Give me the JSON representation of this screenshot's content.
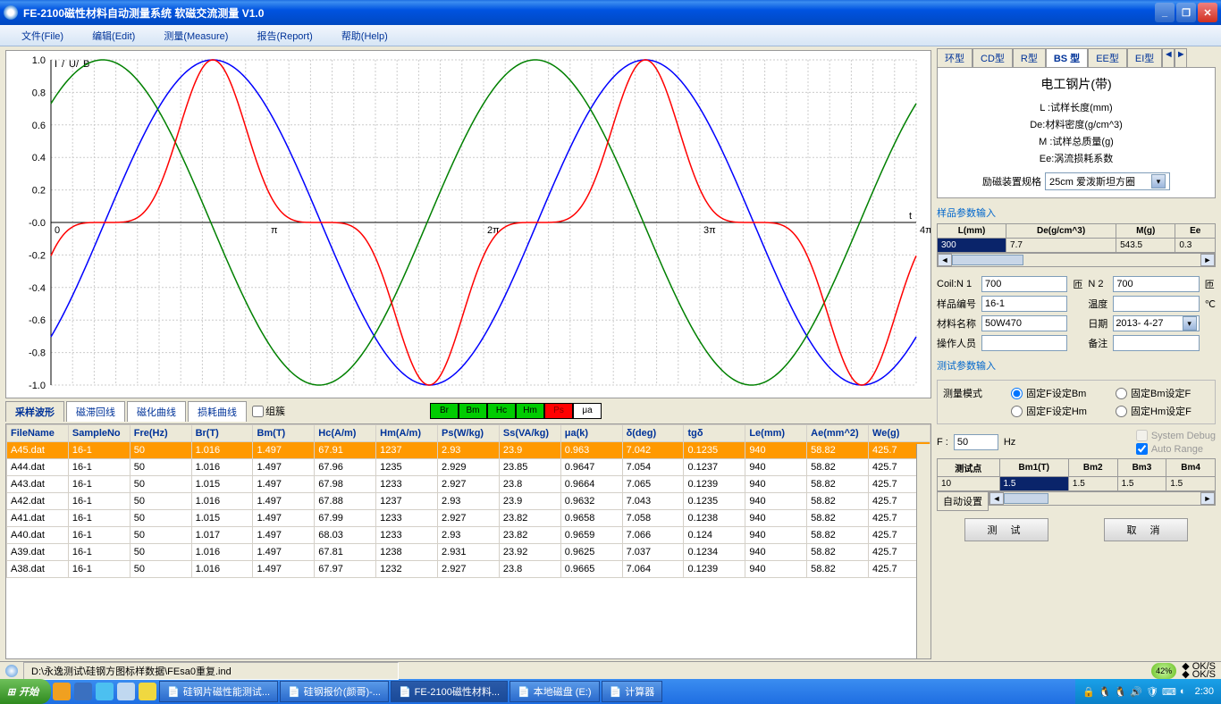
{
  "window": {
    "title": "FE-2100磁性材料自动测量系统  软磁交流测量  V1.0"
  },
  "menu": {
    "file": "文件(File)",
    "edit": "编辑(Edit)",
    "measure": "测量(Measure)",
    "report": "报告(Report)",
    "help": "帮助(Help)"
  },
  "chart": {
    "legend_label": "I/U/B",
    "time_axis_label": "t",
    "xticks": [
      "0",
      "π",
      "2π",
      "3π",
      "4π"
    ],
    "ylim": [
      -1.0,
      1.0
    ],
    "ytick_step": 0.2,
    "grid_color": "#cccccc",
    "background": "#ffffff",
    "series": {
      "i": {
        "color": "#ff0000"
      },
      "u": {
        "color": "#008000"
      },
      "b": {
        "color": "#0000ff"
      }
    }
  },
  "lower_tabs": {
    "t1": "采样波形",
    "t2": "磁滞回线",
    "t3": "磁化曲线",
    "t4": "损耗曲线",
    "group_cb": "组簇"
  },
  "legend_buttons": [
    {
      "label": "Br",
      "bg": "#00cc00"
    },
    {
      "label": "Bm",
      "bg": "#00cc00"
    },
    {
      "label": "Hc",
      "bg": "#00cc00"
    },
    {
      "label": "Hm",
      "bg": "#00cc00"
    },
    {
      "label": "Ps",
      "bg": "#ff0000"
    },
    {
      "label": "μa",
      "bg": "#ffffff"
    }
  ],
  "table": {
    "columns": [
      "FileName",
      "SampleNo",
      "Fre(Hz)",
      "Br(T)",
      "Bm(T)",
      "Hc(A/m)",
      "Hm(A/m)",
      "Ps(W/kg)",
      "Ss(VA/kg)",
      "μa(k)",
      "δ(deg)",
      "tgδ",
      "Le(mm)",
      "Ae(mm^2)",
      "We(g)"
    ],
    "rows": [
      [
        "A45.dat",
        "16-1",
        "50",
        "1.016",
        "1.497",
        "67.91",
        "1237",
        "2.93",
        "23.9",
        "0.963",
        "7.042",
        "0.1235",
        "940",
        "58.82",
        "425.7"
      ],
      [
        "A44.dat",
        "16-1",
        "50",
        "1.016",
        "1.497",
        "67.96",
        "1235",
        "2.929",
        "23.85",
        "0.9647",
        "7.054",
        "0.1237",
        "940",
        "58.82",
        "425.7"
      ],
      [
        "A43.dat",
        "16-1",
        "50",
        "1.015",
        "1.497",
        "67.98",
        "1233",
        "2.927",
        "23.8",
        "0.9664",
        "7.065",
        "0.1239",
        "940",
        "58.82",
        "425.7"
      ],
      [
        "A42.dat",
        "16-1",
        "50",
        "1.016",
        "1.497",
        "67.88",
        "1237",
        "2.93",
        "23.9",
        "0.9632",
        "7.043",
        "0.1235",
        "940",
        "58.82",
        "425.7"
      ],
      [
        "A41.dat",
        "16-1",
        "50",
        "1.015",
        "1.497",
        "67.99",
        "1233",
        "2.927",
        "23.82",
        "0.9658",
        "7.058",
        "0.1238",
        "940",
        "58.82",
        "425.7"
      ],
      [
        "A40.dat",
        "16-1",
        "50",
        "1.017",
        "1.497",
        "68.03",
        "1233",
        "2.93",
        "23.82",
        "0.9659",
        "7.066",
        "0.124",
        "940",
        "58.82",
        "425.7"
      ],
      [
        "A39.dat",
        "16-1",
        "50",
        "1.016",
        "1.497",
        "67.81",
        "1238",
        "2.931",
        "23.92",
        "0.9625",
        "7.037",
        "0.1234",
        "940",
        "58.82",
        "425.7"
      ],
      [
        "A38.dat",
        "16-1",
        "50",
        "1.016",
        "1.497",
        "67.97",
        "1232",
        "2.927",
        "23.8",
        "0.9665",
        "7.064",
        "0.1239",
        "940",
        "58.82",
        "425.7"
      ]
    ],
    "selected_row": 0
  },
  "right_tabs": {
    "t1": "环型",
    "t2": "CD型",
    "t3": "R型",
    "t4": "BS 型",
    "t5": "EE型",
    "t6": "EI型"
  },
  "spec_panel": {
    "title": "电工钢片(带)",
    "l1": "L :试样长度(mm)",
    "l2": "De:材料密度(g/cm^3)",
    "l3": "M :试样总质量(g)",
    "l4": "Ee:涡流损耗系数",
    "combo_label": "励磁装置规格",
    "combo_value": "25cm 爱泼斯坦方圈"
  },
  "sample_input": {
    "title": "样品参数输入",
    "cols": [
      "L(mm)",
      "De(g/cm^3)",
      "M(g)",
      "Ee"
    ],
    "vals": [
      "300",
      "7.7",
      "543.5",
      "0.3"
    ],
    "coil_n1_label": "Coil:N 1",
    "coil_n1": "700",
    "turns1": "匝",
    "n2_label": "N 2",
    "n2": "700",
    "turns2": "匝",
    "sample_no_label": "样品编号",
    "sample_no": "16-1",
    "temp_label": "温度",
    "temp_unit": "℃",
    "material_label": "材料名称",
    "material": "50W470",
    "date_label": "日期",
    "date": "2013- 4-27",
    "operator_label": "操作人员",
    "remark_label": "备注"
  },
  "test_input": {
    "title": "测试参数输入",
    "mode_label": "测量模式",
    "r1": "固定F设定Bm",
    "r2": "固定Bm设定F",
    "r3": "固定F设定Hm",
    "r4": "固定Hm设定F",
    "freq_label": "F :",
    "freq": "50",
    "freq_unit": "Hz",
    "cb_debug": "System Debug",
    "cb_auto": "Auto Range",
    "pts_cols": [
      "测试点",
      "Bm1(T)",
      "Bm2",
      "Bm3",
      "Bm4"
    ],
    "pts_vals": [
      "10",
      "1.5",
      "1.5",
      "1.5",
      "1.5"
    ],
    "auto_set": "自动设置"
  },
  "buttons": {
    "test": "测  试",
    "cancel": "取  消"
  },
  "statusbar": {
    "path": "D:\\永逸测试\\硅钢方图标样数据\\FEsa0重复.ind",
    "percent": "42%",
    "ok": "OK/S"
  },
  "taskbar": {
    "start": "开始",
    "tasks": [
      {
        "label": "硅钢片磁性能测试..."
      },
      {
        "label": "硅钢报价(颜哥)-..."
      },
      {
        "label": "FE-2100磁性材料..."
      },
      {
        "label": "本地磁盘 (E:)"
      },
      {
        "label": "计算器"
      }
    ],
    "clock": "2:30"
  }
}
